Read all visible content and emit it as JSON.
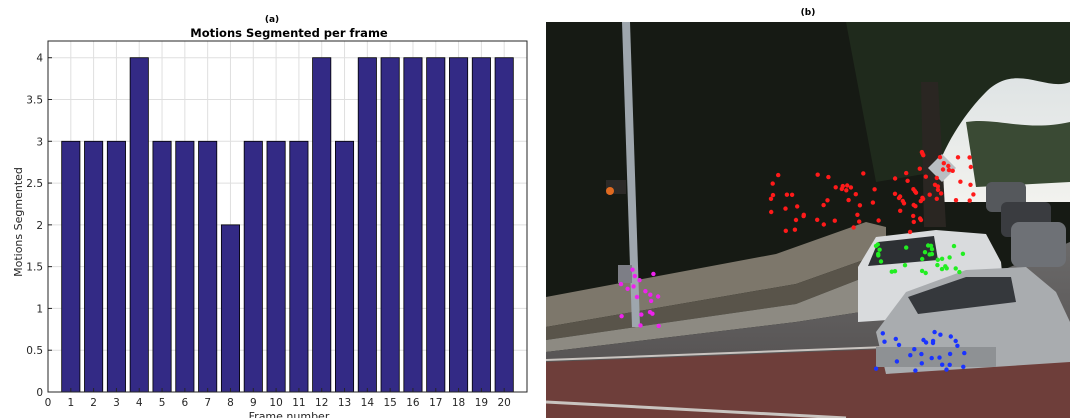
{
  "panel_a_label": "(a)",
  "panel_b_label": "(b)",
  "chart_data": {
    "type": "bar",
    "title": "Motions Segmented per frame",
    "xlabel": "Frame number",
    "ylabel": "Motions Segmented",
    "categories": [
      1,
      2,
      3,
      4,
      5,
      6,
      7,
      8,
      9,
      10,
      11,
      12,
      13,
      14,
      15,
      16,
      17,
      18,
      19,
      20
    ],
    "values": [
      3,
      3,
      3,
      4,
      3,
      3,
      3,
      2,
      3,
      3,
      3,
      4,
      3,
      4,
      4,
      4,
      4,
      4,
      4,
      4
    ],
    "xlim": [
      0,
      21
    ],
    "ylim": [
      0,
      4.2
    ],
    "xticks": [
      0,
      1,
      2,
      3,
      4,
      5,
      6,
      7,
      8,
      9,
      10,
      11,
      12,
      13,
      14,
      15,
      16,
      17,
      18,
      19,
      20
    ],
    "yticks": [
      "0",
      "0.5",
      "1",
      "1.5",
      "2",
      "2.5",
      "3",
      "3.5",
      "4"
    ],
    "grid": true,
    "bar_color": "#332a85"
  },
  "photo": {
    "description_icon": "street-scene-image",
    "point_colors": {
      "red": "#ff1a1a",
      "green": "#22ee22",
      "blue": "#1a33ff",
      "magenta": "#ee22ee"
    }
  }
}
